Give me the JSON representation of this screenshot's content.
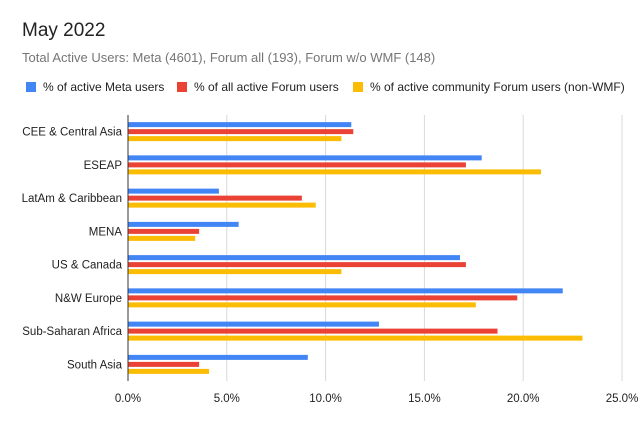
{
  "chart_data": {
    "type": "bar",
    "orientation": "horizontal",
    "title": "May 2022",
    "subtitle": "Total Active Users: Meta (4601), Forum all (193), Forum w/o WMF (148)",
    "categories": [
      "CEE & Central Asia",
      "ESEAP",
      "LatAm & Caribbean",
      "MENA",
      "US & Canada",
      "N&W Europe",
      "Sub-Saharan Africa",
      "South Asia"
    ],
    "series": [
      {
        "name": "% of active Meta users",
        "color": "#4285f4",
        "values": [
          11.3,
          17.9,
          4.6,
          5.6,
          16.8,
          22.0,
          12.7,
          9.1
        ]
      },
      {
        "name": "% of all active Forum users",
        "color": "#ea4335",
        "values": [
          11.4,
          17.1,
          8.8,
          3.6,
          17.1,
          19.7,
          18.7,
          3.6
        ]
      },
      {
        "name": "% of active community Forum users (non-WMF)",
        "color": "#fbbc04",
        "values": [
          10.8,
          20.9,
          9.5,
          3.4,
          10.8,
          17.6,
          23.0,
          4.1
        ]
      }
    ],
    "xlim": [
      0,
      25
    ],
    "x_ticks": [
      "0.0%",
      "5.0%",
      "10.0%",
      "15.0%",
      "20.0%",
      "25.0%"
    ],
    "legend_position": "top",
    "grid": true
  }
}
